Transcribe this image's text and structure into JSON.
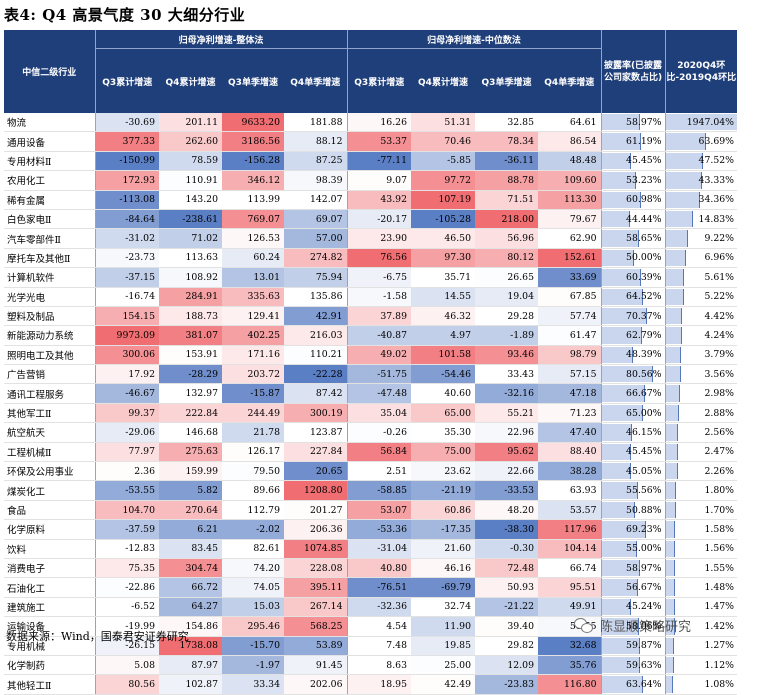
{
  "title": "表4:  Q4 高景气度 30 大细分行业",
  "header": {
    "industry": "中信二级行业",
    "group_total": "归母净利增速-整体法",
    "group_median": "归母净利增速-中位数法",
    "cols": [
      "Q3累计增速",
      "Q4累计增速",
      "Q3单季增速",
      "Q4单季增速",
      "Q3累计增速",
      "Q4累计增速",
      "Q3单季增速",
      "Q4单季增速"
    ],
    "disclosure": "披露率(已披露公司家数占比)",
    "yoy": "2020Q4环比-2019Q4环比"
  },
  "rows": [
    {
      "name": "物流",
      "v": [
        "-30.69",
        "201.11",
        "9633.20",
        "181.88",
        "16.26",
        "51.31",
        "32.85",
        "64.61"
      ],
      "disc": "58.97%",
      "yoy": "1947.04%"
    },
    {
      "name": "通用设备",
      "v": [
        "377.33",
        "262.60",
        "3186.56",
        "88.12",
        "53.37",
        "70.46",
        "78.34",
        "86.54"
      ],
      "disc": "61.19%",
      "yoy": "63.69%"
    },
    {
      "name": "专用材料Ⅱ",
      "v": [
        "-150.99",
        "78.59",
        "-156.28",
        "87.25",
        "-77.11",
        "-5.85",
        "-36.11",
        "48.48"
      ],
      "disc": "45.45%",
      "yoy": "47.52%"
    },
    {
      "name": "农用化工",
      "v": [
        "172.93",
        "110.91",
        "346.12",
        "98.39",
        "9.07",
        "97.72",
        "88.78",
        "109.60"
      ],
      "disc": "53.23%",
      "yoy": "43.33%"
    },
    {
      "name": "稀有金属",
      "v": [
        "-113.08",
        "143.20",
        "113.99",
        "142.07",
        "43.92",
        "107.19",
        "71.51",
        "113.30"
      ],
      "disc": "60.98%",
      "yoy": "34.36%"
    },
    {
      "name": "白色家电Ⅱ",
      "v": [
        "-84.64",
        "-238.61",
        "769.07",
        "69.07",
        "-20.17",
        "-105.28",
        "218.00",
        "79.67"
      ],
      "disc": "44.44%",
      "yoy": "14.83%"
    },
    {
      "name": "汽车零部件Ⅱ",
      "v": [
        "-31.02",
        "71.02",
        "126.53",
        "57.00",
        "23.90",
        "46.50",
        "56.96",
        "62.90"
      ],
      "disc": "58.65%",
      "yoy": "9.22%"
    },
    {
      "name": "摩托车及其他Ⅱ",
      "v": [
        "-23.73",
        "113.63",
        "60.24",
        "274.82",
        "76.56",
        "97.30",
        "80.12",
        "152.61"
      ],
      "disc": "50.00%",
      "yoy": "6.96%"
    },
    {
      "name": "计算机软件",
      "v": [
        "-37.15",
        "108.92",
        "13.01",
        "75.94",
        "-6.75",
        "35.71",
        "26.65",
        "33.69"
      ],
      "disc": "60.39%",
      "yoy": "5.61%"
    },
    {
      "name": "光学光电",
      "v": [
        "-16.74",
        "284.91",
        "335.63",
        "135.86",
        "-1.58",
        "14.55",
        "19.04",
        "67.85"
      ],
      "disc": "64.52%",
      "yoy": "5.22%"
    },
    {
      "name": "塑料及制品",
      "v": [
        "154.15",
        "188.73",
        "129.41",
        "42.91",
        "37.89",
        "46.32",
        "29.28",
        "57.74"
      ],
      "disc": "70.37%",
      "yoy": "4.42%"
    },
    {
      "name": "新能源动力系统",
      "v": [
        "9973.09",
        "381.07",
        "402.25",
        "216.03",
        "-40.87",
        "4.97",
        "-1.89",
        "61.47"
      ],
      "disc": "62.79%",
      "yoy": "4.24%"
    },
    {
      "name": "照明电工及其他",
      "v": [
        "300.06",
        "153.91",
        "171.16",
        "110.21",
        "49.02",
        "101.58",
        "93.46",
        "98.79"
      ],
      "disc": "48.39%",
      "yoy": "3.79%"
    },
    {
      "name": "广告营销",
      "v": [
        "17.92",
        "-28.29",
        "203.72",
        "-22.28",
        "-51.75",
        "-54.46",
        "33.43",
        "57.15"
      ],
      "disc": "80.56%",
      "yoy": "3.56%"
    },
    {
      "name": "通讯工程服务",
      "v": [
        "-46.67",
        "132.97",
        "-15.87",
        "87.42",
        "-47.48",
        "40.60",
        "-32.16",
        "47.18"
      ],
      "disc": "66.67%",
      "yoy": "2.98%"
    },
    {
      "name": "其他军工Ⅱ",
      "v": [
        "99.37",
        "222.84",
        "244.49",
        "300.19",
        "35.04",
        "65.00",
        "55.21",
        "71.23"
      ],
      "disc": "65.00%",
      "yoy": "2.88%"
    },
    {
      "name": "航空航天",
      "v": [
        "-29.06",
        "146.68",
        "21.78",
        "123.87",
        "-0.26",
        "35.30",
        "22.96",
        "47.40"
      ],
      "disc": "46.15%",
      "yoy": "2.56%"
    },
    {
      "name": "工程机械Ⅱ",
      "v": [
        "77.97",
        "275.63",
        "126.17",
        "227.84",
        "56.84",
        "75.00",
        "95.62",
        "88.40"
      ],
      "disc": "45.45%",
      "yoy": "2.47%"
    },
    {
      "name": "环保及公用事业",
      "v": [
        "2.36",
        "159.99",
        "79.50",
        "20.65",
        "2.51",
        "23.62",
        "22.66",
        "38.28"
      ],
      "disc": "45.05%",
      "yoy": "2.26%"
    },
    {
      "name": "煤炭化工",
      "v": [
        "-53.55",
        "5.82",
        "89.66",
        "1208.80",
        "-58.85",
        "-21.19",
        "-33.53",
        "63.93"
      ],
      "disc": "55.56%",
      "yoy": "1.80%"
    },
    {
      "name": "食品",
      "v": [
        "104.70",
        "270.64",
        "112.79",
        "201.27",
        "53.07",
        "60.86",
        "48.20",
        "53.57"
      ],
      "disc": "50.88%",
      "yoy": "1.70%"
    },
    {
      "name": "化学原料",
      "v": [
        "-37.59",
        "6.21",
        "-2.02",
        "206.36",
        "-53.36",
        "-17.35",
        "-38.30",
        "117.96"
      ],
      "disc": "69.23%",
      "yoy": "1.58%"
    },
    {
      "name": "饮料",
      "v": [
        "-12.83",
        "83.45",
        "82.61",
        "1074.85",
        "-31.04",
        "21.60",
        "-0.30",
        "104.14"
      ],
      "disc": "55.00%",
      "yoy": "1.56%"
    },
    {
      "name": "消费电子",
      "v": [
        "75.35",
        "304.74",
        "74.20",
        "228.08",
        "40.80",
        "46.16",
        "72.48",
        "66.74"
      ],
      "disc": "58.97%",
      "yoy": "1.55%"
    },
    {
      "name": "石油化工",
      "v": [
        "-22.86",
        "66.72",
        "74.05",
        "395.11",
        "-76.51",
        "-69.79",
        "50.93",
        "95.51"
      ],
      "disc": "56.67%",
      "yoy": "1.48%"
    },
    {
      "name": "建筑施工",
      "v": [
        "-6.52",
        "64.27",
        "15.03",
        "267.14",
        "-32.36",
        "32.74",
        "-21.22",
        "49.91"
      ],
      "disc": "45.24%",
      "yoy": "1.47%"
    },
    {
      "name": "运输设备",
      "v": [
        "-19.99",
        "154.86",
        "295.46",
        "568.25",
        "4.54",
        "11.90",
        "39.40",
        "58.55"
      ],
      "disc": "58.06%",
      "yoy": "1.42%"
    },
    {
      "name": "专用机械",
      "v": [
        "-26.15",
        "1738.08",
        "-15.70",
        "53.89",
        "7.48",
        "19.85",
        "29.82",
        "32.68"
      ],
      "disc": "59.87%",
      "yoy": "1.27%"
    },
    {
      "name": "化学制药",
      "v": [
        "5.08",
        "87.97",
        "-1.97",
        "91.45",
        "8.63",
        "25.00",
        "12.09",
        "35.76"
      ],
      "disc": "59.63%",
      "yoy": "1.12%"
    },
    {
      "name": "其他轻工Ⅱ",
      "v": [
        "80.56",
        "102.87",
        "33.34",
        "202.06",
        "18.95",
        "42.49",
        "-23.83",
        "116.80"
      ],
      "disc": "63.64%",
      "yoy": "1.08%"
    }
  ],
  "colors": {
    "header_bg": "#1f3f7a",
    "pos_max": "#f06e72",
    "neg_max": "#5b7fc4",
    "bar_fill": "#c9d6ee"
  },
  "source": "数据来源：Wind，国泰君安证券研究",
  "watermark": {
    "text": "陈显顺策略研究",
    "icon": "wechat-icon"
  }
}
